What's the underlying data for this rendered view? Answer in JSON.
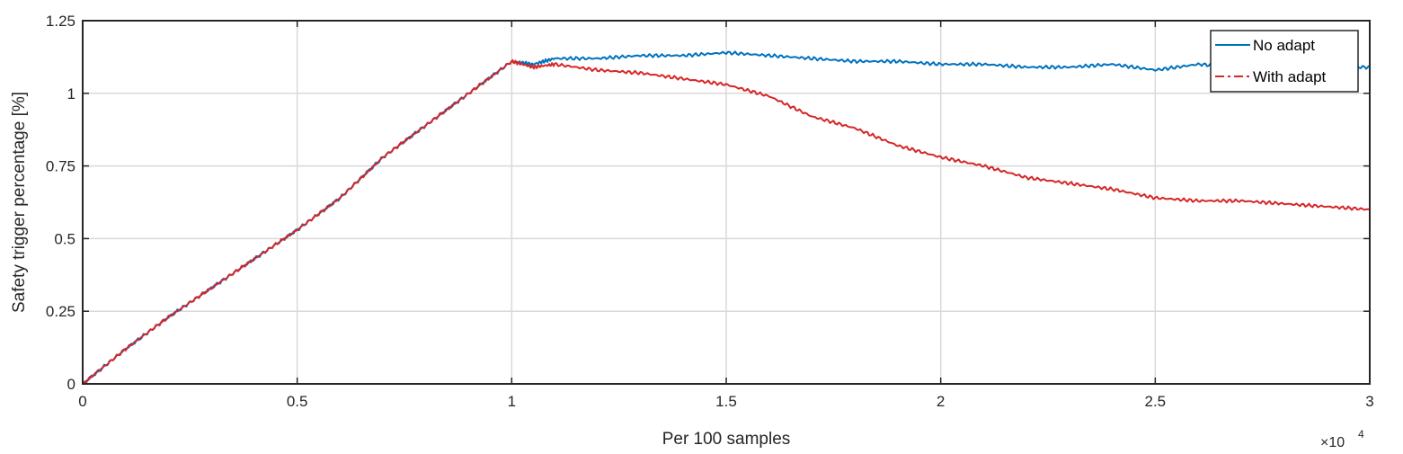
{
  "chart_data": {
    "type": "line",
    "xlabel": "Per 100 samples",
    "ylabel": "Safety trigger percentage [%]",
    "x_exponent_base": "×10",
    "x_exponent_power": "4",
    "xlim": [
      0,
      3
    ],
    "ylim": [
      0,
      1.25
    ],
    "x_ticks": [
      0,
      0.5,
      1,
      1.5,
      2,
      2.5,
      3
    ],
    "x_tick_labels": [
      "0",
      "0.5",
      "1",
      "1.5",
      "2",
      "2.5",
      "3"
    ],
    "y_ticks": [
      0,
      0.25,
      0.5,
      0.75,
      1,
      1.25
    ],
    "y_tick_labels": [
      "0",
      "0.25",
      "0.5",
      "0.75",
      "1",
      "1.25"
    ],
    "grid": true,
    "legend_position": "top-right",
    "series": [
      {
        "name": "No adapt",
        "color": "#0072BD",
        "line_style": "solid",
        "x": [
          0,
          0.1,
          0.2,
          0.3,
          0.4,
          0.5,
          0.6,
          0.7,
          0.8,
          0.9,
          1.0,
          1.05,
          1.1,
          1.2,
          1.3,
          1.4,
          1.5,
          1.6,
          1.7,
          1.8,
          1.9,
          2.0,
          2.1,
          2.2,
          2.3,
          2.4,
          2.5,
          2.6,
          2.7,
          2.8,
          2.9,
          3.0
        ],
        "y": [
          0,
          0.12,
          0.23,
          0.33,
          0.43,
          0.53,
          0.64,
          0.78,
          0.89,
          1.0,
          1.11,
          1.1,
          1.12,
          1.12,
          1.13,
          1.13,
          1.14,
          1.13,
          1.12,
          1.11,
          1.11,
          1.1,
          1.1,
          1.09,
          1.09,
          1.1,
          1.08,
          1.1,
          1.09,
          1.1,
          1.09,
          1.09
        ]
      },
      {
        "name": "With adapt",
        "color": "#D62728",
        "line_style": "dashdot",
        "x": [
          0,
          0.1,
          0.2,
          0.3,
          0.4,
          0.5,
          0.6,
          0.7,
          0.8,
          0.9,
          1.0,
          1.05,
          1.1,
          1.2,
          1.3,
          1.4,
          1.5,
          1.6,
          1.7,
          1.8,
          1.9,
          2.0,
          2.1,
          2.2,
          2.3,
          2.4,
          2.5,
          2.6,
          2.7,
          2.8,
          2.9,
          3.0
        ],
        "y": [
          0,
          0.12,
          0.23,
          0.33,
          0.43,
          0.53,
          0.64,
          0.78,
          0.89,
          1.0,
          1.11,
          1.09,
          1.1,
          1.08,
          1.07,
          1.05,
          1.03,
          0.99,
          0.92,
          0.88,
          0.82,
          0.78,
          0.75,
          0.71,
          0.69,
          0.67,
          0.64,
          0.63,
          0.63,
          0.62,
          0.61,
          0.6
        ]
      }
    ]
  }
}
